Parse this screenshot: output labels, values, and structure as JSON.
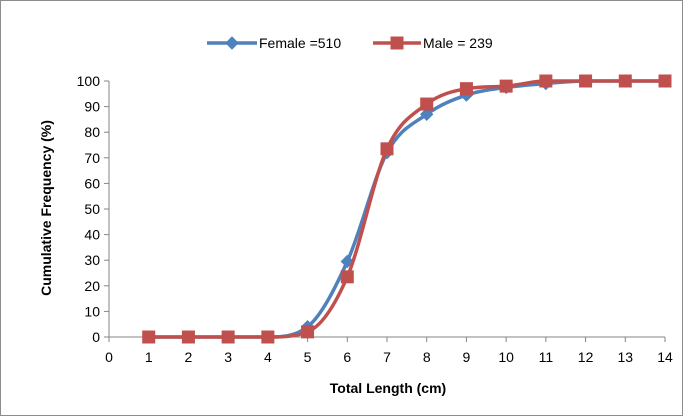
{
  "chart_data": {
    "type": "line",
    "title": "",
    "xlabel": "Total Length (cm)",
    "ylabel": "Cumulative Frequency (%)",
    "xlim": [
      0,
      14
    ],
    "ylim": [
      0,
      100
    ],
    "x_ticks": [
      "0",
      "1",
      "2",
      "3",
      "4",
      "5",
      "6",
      "7",
      "8",
      "9",
      "10",
      "11",
      "12",
      "13",
      "14"
    ],
    "y_ticks": [
      "0",
      "10",
      "20",
      "30",
      "40",
      "50",
      "60",
      "70",
      "80",
      "90",
      "100"
    ],
    "grid": false,
    "legend_position": "top",
    "smooth": true,
    "series": [
      {
        "name": "Female =510",
        "color": "#4F81BD",
        "marker": "diamond",
        "x": [
          1,
          2,
          3,
          4,
          5,
          6,
          7,
          8,
          9,
          10,
          11,
          12,
          13,
          14
        ],
        "y": [
          0,
          0,
          0,
          0,
          4,
          29.5,
          72,
          87,
          94.5,
          97.5,
          99,
          100,
          100,
          100
        ]
      },
      {
        "name": "Male = 239",
        "color": "#C0504D",
        "marker": "square",
        "x": [
          1,
          2,
          3,
          4,
          5,
          6,
          7,
          8,
          9,
          10,
          11,
          12,
          13,
          14
        ],
        "y": [
          0,
          0,
          0,
          0,
          2,
          23.5,
          73.5,
          91,
          97,
          98,
          100,
          100,
          100,
          100
        ]
      }
    ]
  }
}
